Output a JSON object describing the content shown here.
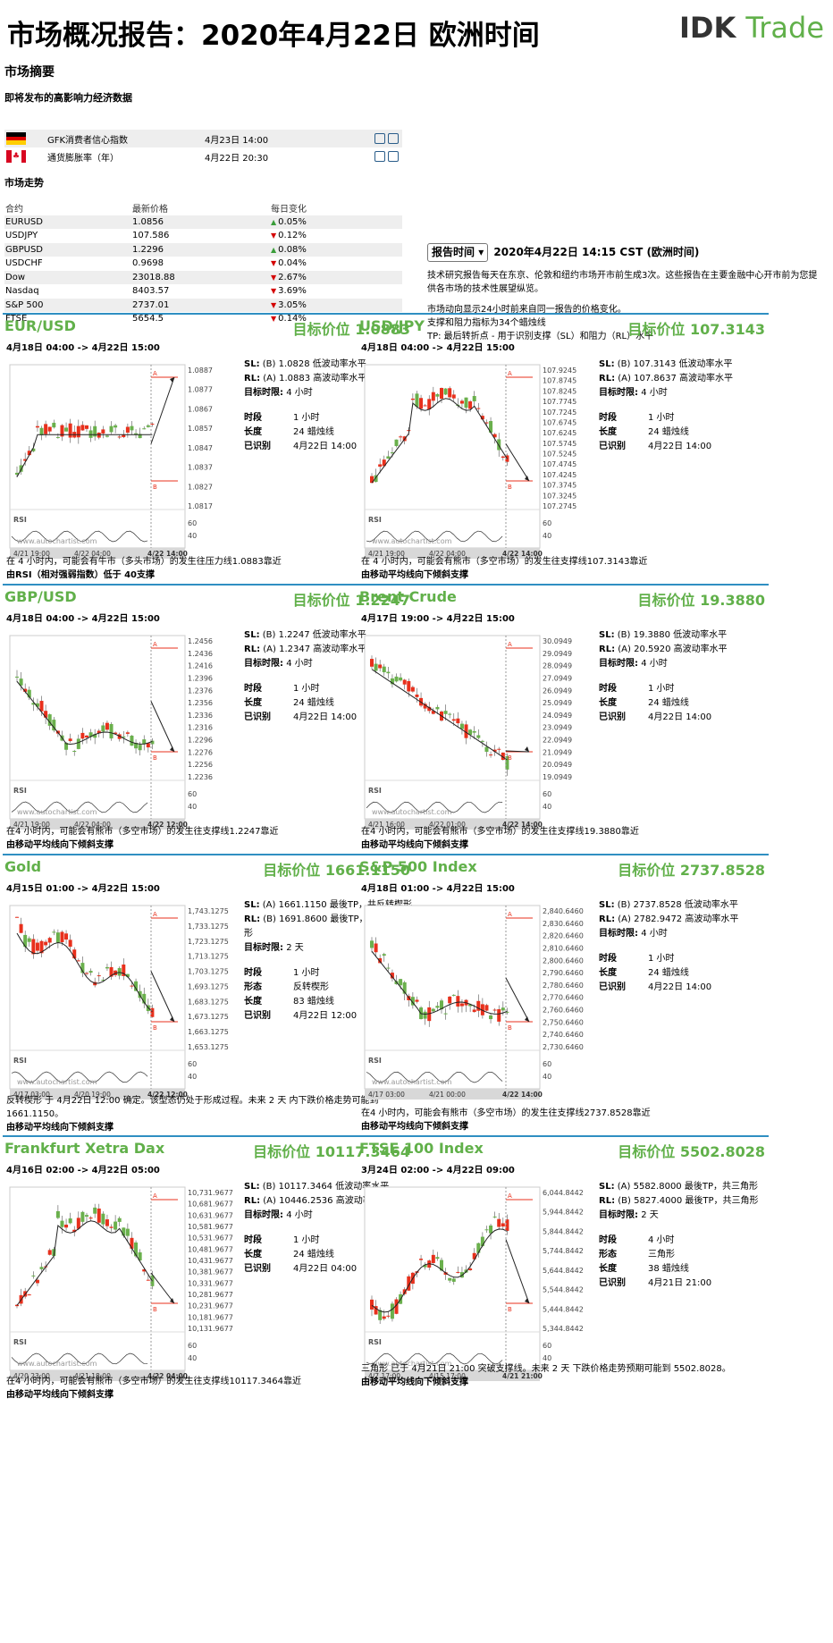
{
  "header": {
    "title": "市场概况报告：2020年4月22日 欧洲时间",
    "logo_left": "IDK",
    "logo_right": "Trade"
  },
  "summary": {
    "title": "市场摘要",
    "events_title": "即将发布的高影响力经济数据",
    "events": [
      {
        "flag": "DE",
        "name": "GFK消费者信心指数",
        "time": "4月23日 14:00"
      },
      {
        "flag": "CA",
        "name": "通货膨胀率（年）",
        "time": "4月22日 20:30"
      }
    ],
    "market_title": "市场走势",
    "columns": [
      "合约",
      "最新价格",
      "每日变化"
    ],
    "rows": [
      {
        "name": "EURUSD",
        "price": "1.0856",
        "dir": "up",
        "change": "0.05%"
      },
      {
        "name": "USDJPY",
        "price": "107.586",
        "dir": "down",
        "change": "0.12%"
      },
      {
        "name": "GBPUSD",
        "price": "1.2296",
        "dir": "up",
        "change": "0.08%"
      },
      {
        "name": "USDCHF",
        "price": "0.9698",
        "dir": "down",
        "change": "0.04%"
      },
      {
        "name": "Dow",
        "price": "23018.88",
        "dir": "down",
        "change": "2.67%"
      },
      {
        "name": "Nasdaq",
        "price": "8403.57",
        "dir": "down",
        "change": "3.69%"
      },
      {
        "name": "S&P 500",
        "price": "2737.01",
        "dir": "down",
        "change": "3.05%"
      },
      {
        "name": "FTSE",
        "price": "5654.5",
        "dir": "down",
        "change": "0.14%"
      }
    ]
  },
  "report": {
    "button": "报告时间",
    "time": "2020年4月22日 14:15 CST (欧洲时间)",
    "p1": "技术研究报告每天在东京、伦敦和纽约市场开市前生成3次。这些报告在主要金融中心开市前为您提供各市场的技术性展望纵览。",
    "p2a": "市场动向显示24小时前来自同一报告的价格变化。",
    "p2b": "支撑和阻力指标为34个蜡烛线",
    "p2c": "TP: 最后转折点 - 用于识别支撑（SL）和阻力（RL）水平"
  },
  "panels": [
    {
      "name": "EUR/USD",
      "target": "目标价位 1.0883",
      "period": "4月18日 04:00 -> 4月22日 15:00",
      "sl": "(B) 1.0828 低波动率水平",
      "rl": "(A) 1.0883 高波动率水平",
      "horizon": "4 小时",
      "kv": [
        [
          "时段",
          "1 小时"
        ],
        [
          "长度",
          "24 蜡烛线"
        ],
        [
          "已识别",
          "4月22日 14:00"
        ]
      ],
      "y_ticks": [
        "1.0887",
        "1.0877",
        "1.0867",
        "1.0857",
        "1.0847",
        "1.0837",
        "1.0827",
        "1.0817"
      ],
      "x_ticks": [
        "4/21 19:00",
        "4/22 04:00",
        "4/22 14:00"
      ],
      "foot1": "在 4 小时内，可能会有牛市（多头市场）的发生往压力线1.0883靠近",
      "foot2": "由RSI（相对强弱指数）低于 40支撑"
    },
    {
      "name": "USD/JPY",
      "target": "目标价位 107.3143",
      "period": "4月18日 04:00 -> 4月22日 15:00",
      "sl": "(B) 107.3143 低波动率水平",
      "rl": "(A) 107.8637 高波动率水平",
      "horizon": "4 小时",
      "kv": [
        [
          "时段",
          "1 小时"
        ],
        [
          "长度",
          "24 蜡烛线"
        ],
        [
          "已识别",
          "4月22日 14:00"
        ]
      ],
      "y_ticks": [
        "107.9245",
        "107.8745",
        "107.8245",
        "107.7745",
        "107.7245",
        "107.6745",
        "107.6245",
        "107.5745",
        "107.5245",
        "107.4745",
        "107.4245",
        "107.3745",
        "107.3245",
        "107.2745"
      ],
      "x_ticks": [
        "4/21 19:00",
        "4/22 04:00",
        "4/22 14:00"
      ],
      "foot1": "在 4 小时内，可能会有熊市（多空市场）的发生往支撑线107.3143靠近",
      "foot2": "由移动平均线向下倾斜支撑"
    },
    {
      "name": "GBP/USD",
      "target": "目标价位 1.2247",
      "period": "4月18日 04:00 -> 4月22日 15:00",
      "sl": "(B) 1.2247 低波动率水平",
      "rl": "(A) 1.2347 高波动率水平",
      "horizon": "4 小时",
      "kv": [
        [
          "时段",
          "1 小时"
        ],
        [
          "长度",
          "24 蜡烛线"
        ],
        [
          "已识别",
          "4月22日 14:00"
        ]
      ],
      "y_ticks": [
        "1.2456",
        "1.2436",
        "1.2416",
        "1.2396",
        "1.2376",
        "1.2356",
        "1.2336",
        "1.2316",
        "1.2296",
        "1.2276",
        "1.2256",
        "1.2236"
      ],
      "x_ticks": [
        "4/21 19:00",
        "4/22 04:00",
        "4/22 12:00"
      ],
      "foot1": "在4 小时内，可能会有熊市（多空市场）的发生往支撑线1.2247靠近",
      "foot2": "由移动平均线向下倾斜支撑"
    },
    {
      "name": "Brent Crude",
      "target": "目标价位 19.3880",
      "period": "4月17日 19:00 -> 4月22日 15:00",
      "sl": "(B) 19.3880 低波动率水平",
      "rl": "(A) 20.5920 高波动率水平",
      "horizon": "4 小时",
      "kv": [
        [
          "时段",
          "1 小时"
        ],
        [
          "长度",
          "24 蜡烛线"
        ],
        [
          "已识别",
          "4月22日 14:00"
        ]
      ],
      "y_ticks": [
        "30.0949",
        "29.0949",
        "28.0949",
        "27.0949",
        "26.0949",
        "25.0949",
        "24.0949",
        "23.0949",
        "22.0949",
        "21.0949",
        "20.0949",
        "19.0949"
      ],
      "x_ticks": [
        "4/21 16:00",
        "4/22 01:00",
        "4/22 14:00"
      ],
      "foot1": "在4 小时内，可能会有熊市（多空市场）的发生往支撑线19.3880靠近",
      "foot2": "由移动平均线向下倾斜支撑"
    },
    {
      "name": "Gold",
      "target": "目标价位 1661.1150",
      "period": "4月15日 01:00 -> 4月22日 15:00",
      "sl": "(A) 1661.1150 最後TP，共反转楔形",
      "rl": "(B) 1691.8600 最後TP，共反转楔形",
      "horizon": "2 天",
      "kv": [
        [
          "时段",
          "1 小时"
        ],
        [
          "形态",
          "反转楔形"
        ],
        [
          "长度",
          "83 蜡烛线"
        ],
        [
          "已识别",
          "4月22日 12:00"
        ]
      ],
      "y_ticks": [
        "1,743.1275",
        "1,733.1275",
        "1,723.1275",
        "1,713.1275",
        "1,703.1275",
        "1,693.1275",
        "1,683.1275",
        "1,673.1275",
        "1,663.1275",
        "1,653.1275"
      ],
      "x_ticks": [
        "4/17 03:00",
        "4/20 19:00",
        "4/22 12:00"
      ],
      "foot1": "反转楔形 于 4月22日 12:00 确定。该型态仍处于形成过程。未来 2 天 内下跌价格走势可能到 1661.1150。",
      "foot2": "由移动平均线向下倾斜支撑"
    },
    {
      "name": "S&P 500 Index",
      "target": "目标价位 2737.8528",
      "period": "4月18日 01:00 -> 4月22日 15:00",
      "sl": "(B) 2737.8528 低波动率水平",
      "rl": "(A) 2782.9472 高波动率水平",
      "horizon": "4 小时",
      "kv": [
        [
          "时段",
          "1 小时"
        ],
        [
          "长度",
          "24 蜡烛线"
        ],
        [
          "已识别",
          "4月22日 14:00"
        ]
      ],
      "y_ticks": [
        "2,840.6460",
        "2,830.6460",
        "2,820.6460",
        "2,810.6460",
        "2,800.6460",
        "2,790.6460",
        "2,780.6460",
        "2,770.6460",
        "2,760.6460",
        "2,750.6460",
        "2,740.6460",
        "2,730.6460"
      ],
      "x_ticks": [
        "4/17 03:00",
        "4/21 00:00",
        "4/22 14:00"
      ],
      "foot1": "在4 小时内，可能会有熊市（多空市场）的发生往支撑线2737.8528靠近",
      "foot2": "由移动平均线向下倾斜支撑"
    },
    {
      "name": "Frankfurt Xetra Dax",
      "target": "目标价位 10117.3464",
      "period": "4月16日 02:00 -> 4月22日 05:00",
      "sl": "(B) 10117.3464 低波动率水平",
      "rl": "(A) 10446.2536 高波动率水平",
      "horizon": "4 小时",
      "kv": [
        [
          "时段",
          "1 小时"
        ],
        [
          "长度",
          "24 蜡烛线"
        ],
        [
          "已识别",
          "4月22日 04:00"
        ]
      ],
      "y_ticks": [
        "10,731.9677",
        "10,681.9677",
        "10,631.9677",
        "10,581.9677",
        "10,531.9677",
        "10,481.9677",
        "10,431.9677",
        "10,381.9677",
        "10,331.9677",
        "10,281.9677",
        "10,231.9677",
        "10,181.9677",
        "10,131.9677"
      ],
      "x_ticks": [
        "4/20 23:00",
        "4/21 18:00",
        "4/22 04:00"
      ],
      "foot1": "在4 小时内，可能会有熊市（多空市场）的发生往支撑线10117.3464靠近",
      "foot2": "由移动平均线向下倾斜支撑"
    },
    {
      "name": "FTSE 100 Index",
      "target": "目标价位 5502.8028",
      "period": "3月24日 02:00 -> 4月22日 09:00",
      "sl": "(A) 5582.8000 最後TP，共三角形",
      "rl": "(B) 5827.4000 最後TP，共三角形",
      "horizon": "2 天",
      "kv": [
        [
          "时段",
          "4 小时"
        ],
        [
          "形态",
          "三角形"
        ],
        [
          "长度",
          "38 蜡烛线"
        ],
        [
          "已识别",
          "4月21日 21:00"
        ]
      ],
      "y_ticks": [
        "6,044.8442",
        "5,944.8442",
        "5,844.8442",
        "5,744.8442",
        "5,644.8442",
        "5,544.8442",
        "5,444.8442",
        "5,344.8442"
      ],
      "x_ticks": [
        "4/7 17:00",
        "4/15 17:00",
        "4/21 21:00"
      ],
      "foot1": "三角形 已于 4月21日 21:00 突破支撑线。未来 2 天 下跌价格走势预期可能到 5502.8028。",
      "foot2": "由移动平均线向下倾斜支撑"
    }
  ],
  "labels": {
    "sl": "SL:",
    "rl": "RL:",
    "horizon": "目标时限:",
    "rsi": "RSI",
    "watermark": "www.autochartist.com",
    "rsi_hi": "60",
    "rsi_lo": "40",
    "mark_a": "A",
    "mark_b": "B"
  },
  "colors": {
    "up": "#6ab04c",
    "down": "#e8301c",
    "accent": "#61b04a",
    "border": "#2f8fc2"
  }
}
